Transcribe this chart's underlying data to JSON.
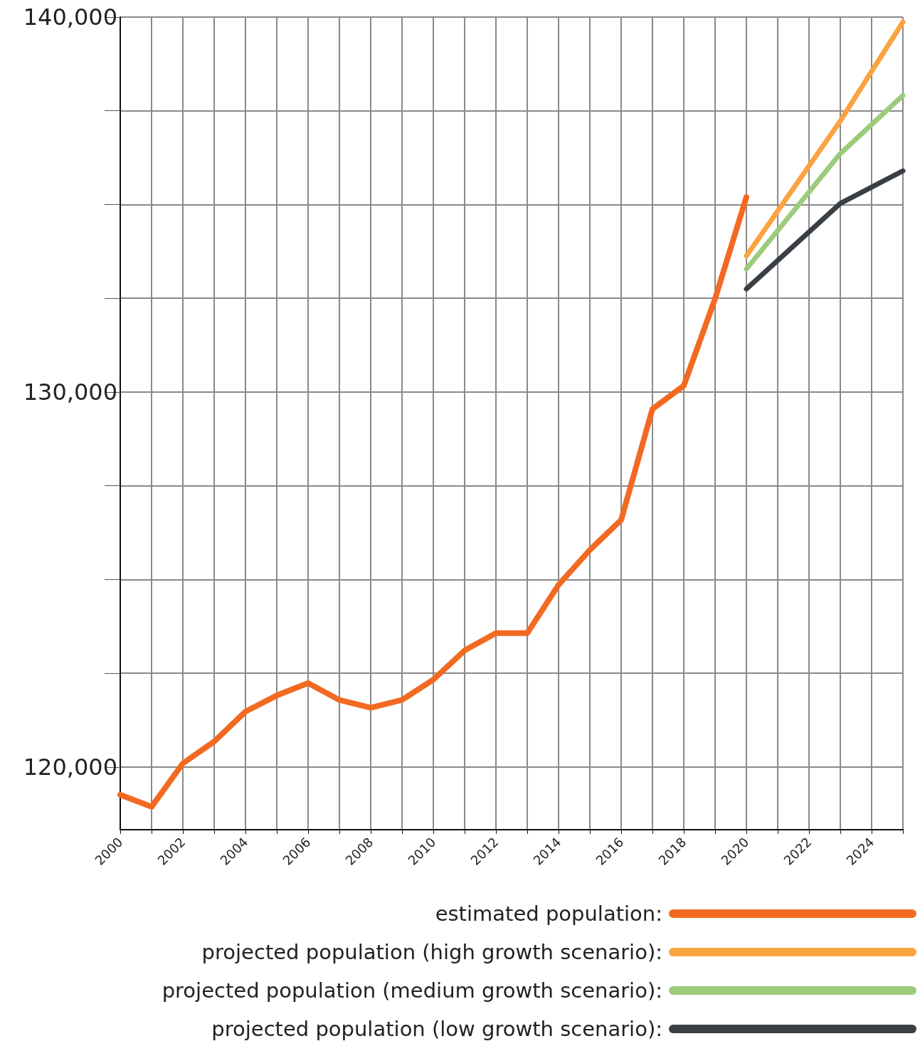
{
  "chart_data": {
    "type": "line",
    "x": [
      2000,
      2001,
      2002,
      2003,
      2004,
      2005,
      2006,
      2007,
      2008,
      2009,
      2010,
      2011,
      2012,
      2013,
      2014,
      2015,
      2016,
      2017,
      2018,
      2019,
      2020
    ],
    "series": [
      {
        "name": "estimated population:",
        "color": "#f26a22",
        "values": [
          119260,
          118940,
          120100,
          120680,
          121480,
          121910,
          122240,
          121790,
          121580,
          121790,
          122330,
          123110,
          123570,
          123570,
          124860,
          125790,
          126590,
          129550,
          130170,
          132490,
          135200
        ]
      },
      {
        "name": "projected population (high growth scenario):",
        "color": "#fba33f",
        "x": [
          2020,
          2023,
          2025
        ],
        "values": [
          133630,
          137230,
          139870
        ]
      },
      {
        "name": "projected population (medium growth scenario):",
        "color": "#9ccb7c",
        "x": [
          2020,
          2023,
          2025
        ],
        "values": [
          133280,
          136360,
          137910
        ]
      },
      {
        "name": "projected population (low growth scenario):",
        "color": "#393f45",
        "x": [
          2020,
          2023,
          2025
        ],
        "values": [
          132750,
          135030,
          135900
        ]
      }
    ],
    "xlim": [
      2000,
      2025
    ],
    "xticks": [
      2000,
      {
        "value": 2001,
        "label": null
      },
      2002,
      {
        "value": 2003,
        "label": null
      },
      2004,
      {
        "value": 2005,
        "label": null
      },
      2006,
      {
        "value": 2007,
        "label": null
      },
      2008,
      {
        "value": 2009,
        "label": null
      },
      2010,
      {
        "value": 2011,
        "label": null
      },
      2012,
      {
        "value": 2013,
        "label": null
      },
      2014,
      {
        "value": 2015,
        "label": null
      },
      2016,
      {
        "value": 2017,
        "label": null
      },
      2018,
      {
        "value": 2019,
        "label": null
      },
      2020,
      {
        "value": 2021,
        "label": null
      },
      2022,
      {
        "value": 2023,
        "label": null
      },
      2024,
      {
        "value": 2025,
        "label": null
      }
    ],
    "ylim": [
      118330,
      140000
    ],
    "yticks": [
      {
        "value": 120000,
        "label": "120,000"
      },
      {
        "value": 122500,
        "label": null
      },
      {
        "value": 125000,
        "label": null
      },
      {
        "value": 127500,
        "label": null
      },
      {
        "value": 130000,
        "label": "130,000"
      },
      {
        "value": 132500,
        "label": null
      },
      {
        "value": 135000,
        "label": null
      },
      {
        "value": 137500,
        "label": null
      },
      {
        "value": 140000,
        "label": "140,000"
      }
    ],
    "grid": true,
    "legend": "bottom",
    "marker": "none",
    "line_style": "solid"
  }
}
